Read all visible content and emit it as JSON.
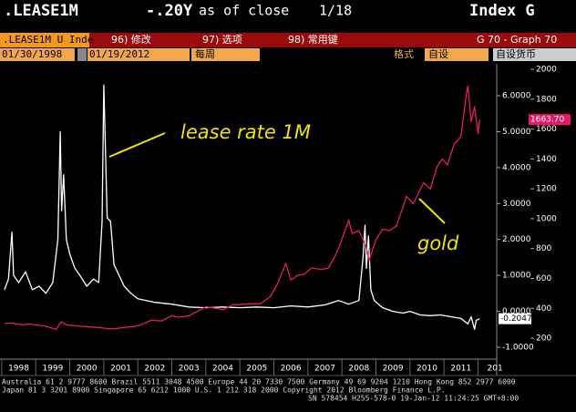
{
  "header": {
    "ticker": ".LEASE1M",
    "change": "-.20Y",
    "asof": "as of close",
    "date": "1/18",
    "index": "Index G"
  },
  "toolbar": {
    "security": ".LEASE1M U Inde",
    "items": [
      "96) 修改",
      "97) 选项",
      "98) 常用键"
    ],
    "graph": "G 70 - Graph 70"
  },
  "fields": {
    "start": "01/30/1998",
    "end": "01/19/2012",
    "period": "每周",
    "format_label": "格式",
    "format": "自设",
    "currency": "自设货币"
  },
  "footer": [
    "Australia 61 2 9777 8600 Brazil 5511 3048 4500 Europe 44 20 7330 7500 Germany 49 69 9204 1210 Hong Kong 852 2977 6000",
    "Japan 81 3 3201 8900         Singapore 65 6212 1000         U.S. 1 212 318 2000         Copyright 2012 Bloomberg Finance L.P.",
    "SN 578454 H255-578-0 19-Jan-12 11:24:25 GMT+8:00"
  ],
  "chart_data": {
    "type": "line",
    "annotations": [
      "lease rate 1M",
      "gold"
    ],
    "xlim": [
      1997.95,
      2012.55
    ],
    "xticks": [
      1998,
      1999,
      2000,
      2001,
      2002,
      2003,
      2004,
      2005,
      2006,
      2007,
      2008,
      2009,
      2010,
      2011,
      {
        "value": 2012,
        "label": "201"
      }
    ],
    "ylim": [
      -1.28,
      6.89
    ],
    "yticks": [
      {
        "value": 6,
        "label": "6.0000"
      },
      {
        "value": 5,
        "label": "5.0000"
      },
      {
        "value": 4,
        "label": "4.0000"
      },
      {
        "value": 3,
        "label": "3.0000"
      },
      {
        "value": 2,
        "label": "2.0000"
      },
      {
        "value": 1,
        "label": "1.0000"
      },
      {
        "value": 0,
        "label": "0.0000"
      },
      {
        "value": -1,
        "label": "-1.0000"
      }
    ],
    "y2lim": [
      72,
      2037
    ],
    "y2ticks": [
      2000,
      1800,
      1600,
      1400,
      1200,
      1000,
      800,
      600,
      400,
      200
    ],
    "series": [
      {
        "name": "lease rate 1M",
        "color": "#ffffff",
        "axis": "y",
        "end_label": "-0.2047",
        "x": [
          1998.08,
          1998.2,
          1998.3,
          1998.35,
          1998.5,
          1998.7,
          1998.9,
          1999.1,
          1999.3,
          1999.5,
          1999.65,
          1999.72,
          1999.76,
          1999.82,
          1999.9,
          2000.0,
          2000.15,
          2000.3,
          2000.5,
          2000.7,
          2000.85,
          2000.95,
          2001.0,
          2001.05,
          2001.1,
          2001.2,
          2001.3,
          2001.45,
          2001.6,
          2001.8,
          2002.0,
          2002.5,
          2003.0,
          2003.5,
          2004.0,
          2004.5,
          2005.0,
          2005.5,
          2006.0,
          2006.5,
          2007.0,
          2007.5,
          2007.9,
          2008.2,
          2008.5,
          2008.62,
          2008.68,
          2008.72,
          2008.78,
          2008.85,
          2008.95,
          2009.2,
          2009.5,
          2009.8,
          2010.0,
          2010.3,
          2010.6,
          2010.9,
          2011.2,
          2011.5,
          2011.7,
          2011.8,
          2011.9,
          2011.95,
          2012.05
        ],
        "values": [
          0.6,
          0.9,
          2.2,
          1.0,
          0.8,
          1.1,
          0.6,
          0.7,
          0.5,
          0.8,
          2.0,
          5.0,
          2.8,
          3.8,
          2.0,
          1.6,
          1.2,
          1.0,
          0.7,
          0.9,
          0.8,
          2.5,
          6.3,
          4.5,
          2.6,
          2.5,
          1.3,
          1.0,
          0.7,
          0.5,
          0.35,
          0.25,
          0.2,
          0.12,
          0.1,
          0.12,
          0.1,
          0.12,
          0.1,
          0.15,
          0.12,
          0.18,
          0.3,
          0.2,
          0.3,
          1.5,
          2.4,
          1.2,
          2.1,
          0.6,
          0.3,
          0.1,
          0.0,
          -0.05,
          0.0,
          -0.1,
          -0.12,
          -0.1,
          -0.15,
          -0.2,
          -0.35,
          -0.15,
          -0.5,
          -0.25,
          -0.2047
        ]
      },
      {
        "name": "gold",
        "color": "#e8196a",
        "axis": "y2",
        "end_label": "1663.70",
        "x": [
          1998.08,
          1998.3,
          1998.6,
          1998.8,
          1999.0,
          1999.3,
          1999.6,
          1999.75,
          1999.9,
          2000.1,
          2000.3,
          2000.6,
          2000.9,
          2001.1,
          2001.3,
          2001.6,
          2001.9,
          2002.1,
          2002.4,
          2002.7,
          2003.0,
          2003.2,
          2003.5,
          2003.8,
          2004.0,
          2004.3,
          2004.5,
          2004.8,
          2005.0,
          2005.3,
          2005.6,
          2005.9,
          2006.1,
          2006.35,
          2006.5,
          2006.7,
          2006.9,
          2007.1,
          2007.4,
          2007.6,
          2007.8,
          2007.95,
          2008.2,
          2008.3,
          2008.5,
          2008.7,
          2008.8,
          2009.0,
          2009.2,
          2009.4,
          2009.6,
          2009.9,
          2010.1,
          2010.4,
          2010.6,
          2010.8,
          2010.95,
          2011.1,
          2011.3,
          2011.5,
          2011.65,
          2011.7,
          2011.8,
          2011.9,
          2012.0,
          2012.05
        ],
        "values": [
          300,
          300,
          290,
          295,
          288,
          280,
          258,
          310,
          290,
          285,
          280,
          275,
          270,
          265,
          262,
          272,
          278,
          290,
          320,
          315,
          350,
          340,
          350,
          385,
          410,
          400,
          390,
          425,
          425,
          430,
          430,
          480,
          560,
          700,
          590,
          620,
          630,
          670,
          660,
          670,
          750,
          830,
          990,
          900,
          920,
          820,
          720,
          860,
          930,
          920,
          950,
          1150,
          1100,
          1240,
          1200,
          1350,
          1400,
          1360,
          1500,
          1550,
          1820,
          1890,
          1650,
          1750,
          1570,
          1663.7
        ]
      }
    ]
  }
}
